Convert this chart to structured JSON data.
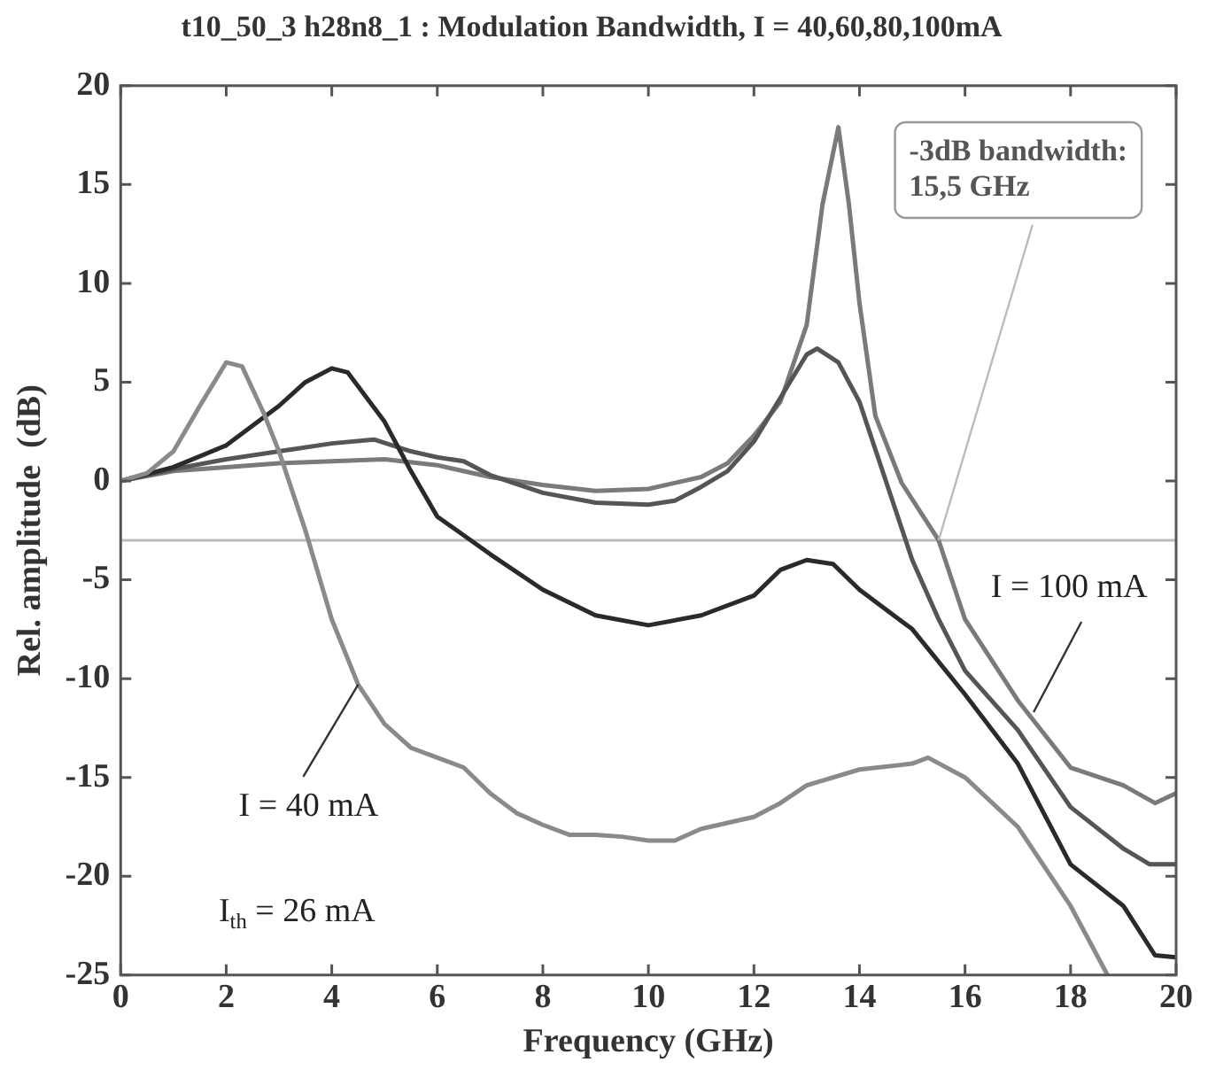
{
  "chart_data": {
    "type": "line",
    "title": "t10_50_3 h28n8_1 : Modulation Bandwidth, I = 40,60,80,100mA",
    "xlabel": "Frequency (GHz)",
    "ylabel": "Rel. amplitude  (dB)",
    "xlim": [
      0,
      20
    ],
    "xticks": [
      0,
      2,
      4,
      6,
      8,
      10,
      12,
      14,
      16,
      18,
      20
    ],
    "ylim": [
      -25,
      20
    ],
    "yticks": [
      -25,
      -20,
      -15,
      -10,
      -5,
      0,
      5,
      10,
      15,
      20
    ],
    "grid": false,
    "legend": false,
    "marker": "none",
    "line_style": "solid",
    "series": [
      {
        "color": "#8a8a8a",
        "x": [
          0,
          0.5,
          1,
          1.5,
          2,
          2.3,
          2.7,
          3,
          3.5,
          4,
          4.5,
          5,
          5.5,
          6,
          6.5,
          7,
          7.5,
          8,
          8.5,
          9,
          9.5,
          10,
          10.5,
          11,
          12,
          12.5,
          13,
          14,
          15,
          15.3,
          16,
          17,
          18,
          18.7
        ],
        "values": [
          0,
          0.4,
          1.5,
          3.8,
          6,
          5.8,
          3.5,
          1.5,
          -2.5,
          -7,
          -10.3,
          -12.3,
          -13.5,
          -14,
          -14.5,
          -15.8,
          -16.8,
          -17.4,
          -17.9,
          -17.9,
          -18,
          -18.2,
          -18.2,
          -17.6,
          -17,
          -16.3,
          -15.4,
          -14.6,
          -14.3,
          -14,
          -15,
          -17.5,
          -21.5,
          -25
        ]
      },
      {
        "color": "#2a2a2a",
        "x": [
          0,
          1,
          2,
          3,
          3.5,
          4,
          4.3,
          5,
          5.5,
          6,
          7,
          8,
          9,
          10,
          11,
          12,
          12.5,
          13,
          13.5,
          14,
          15,
          16,
          17,
          18,
          19,
          19.6,
          20
        ],
        "values": [
          0,
          0.7,
          1.8,
          3.8,
          5,
          5.7,
          5.5,
          3,
          0.5,
          -1.8,
          -3.7,
          -5.5,
          -6.8,
          -7.3,
          -6.8,
          -5.8,
          -4.5,
          -4,
          -4.2,
          -5.5,
          -7.5,
          -10.8,
          -14.3,
          -19.4,
          -21.5,
          -24,
          -24.1
        ]
      },
      {
        "color": "#555555",
        "x": [
          0,
          1,
          2,
          3,
          4,
          4.8,
          5.5,
          6,
          6.5,
          7,
          8,
          9,
          10,
          10.5,
          11,
          11.5,
          12,
          12.5,
          13,
          13.2,
          13.6,
          14,
          14.5,
          15,
          15.5,
          16,
          17,
          18,
          19,
          19.5,
          20
        ],
        "values": [
          0,
          0.6,
          1.1,
          1.5,
          1.9,
          2.1,
          1.5,
          1.2,
          1,
          0.3,
          -0.6,
          -1.1,
          -1.2,
          -1,
          -0.3,
          0.5,
          2,
          4.2,
          6.4,
          6.7,
          6,
          4,
          0,
          -4,
          -7,
          -9.6,
          -12.6,
          -16.5,
          -18.6,
          -19.4,
          -19.4
        ]
      },
      {
        "color": "#7a7a7a",
        "x": [
          0,
          1,
          2,
          3,
          4,
          5,
          6,
          7,
          8,
          9,
          10,
          11,
          11.5,
          12,
          12.5,
          13,
          13.3,
          13.6,
          13.8,
          14,
          14.3,
          14.8,
          15.5,
          16,
          17,
          18,
          19,
          19.6,
          20
        ],
        "values": [
          0,
          0.5,
          0.7,
          0.9,
          1,
          1.1,
          0.8,
          0.2,
          -0.2,
          -0.5,
          -0.4,
          0.2,
          0.9,
          2.3,
          4,
          7.9,
          14,
          17.9,
          14,
          9,
          3.3,
          -0.1,
          -3,
          -7,
          -11.1,
          -14.5,
          -15.4,
          -16.3,
          -15.8
        ]
      }
    ],
    "ref_lines": [
      {
        "axis": "y",
        "value": -3,
        "color": "#bbbbbb"
      }
    ],
    "annotations": [
      {
        "text": "-3dB bandwidth:\n15,5 GHz",
        "x": 15.5,
        "y": -3
      },
      {
        "text": "I = 100 mA",
        "x": 17.3,
        "y": -11.7
      },
      {
        "text": "I = 40 mA",
        "x": 4.5,
        "y": -10.3
      },
      "I$_{th}$ = 26 mA"
    ]
  }
}
